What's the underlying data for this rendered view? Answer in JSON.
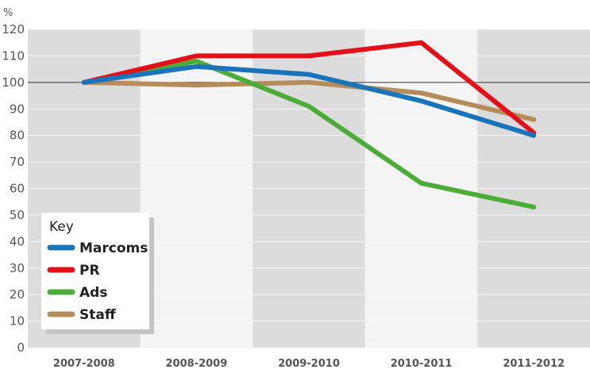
{
  "chart_data": {
    "type": "line",
    "title": "",
    "xlabel": "",
    "ylabel": "%",
    "ylim": [
      0,
      120
    ],
    "yticks": [
      0,
      10,
      20,
      30,
      40,
      50,
      60,
      70,
      80,
      90,
      100,
      110,
      120
    ],
    "categories": [
      "2007-2008",
      "2008-2009",
      "2009-2010",
      "2010-2011",
      "2011-2012"
    ],
    "grid": "horizontal",
    "reference_line": 100,
    "legend": {
      "title": "Key",
      "placement": "bottom-left"
    },
    "series": [
      {
        "name": "Marcoms",
        "color": "#1a74bb",
        "values": [
          100,
          106,
          103,
          93,
          80
        ]
      },
      {
        "name": "PR",
        "color": "#e3101a",
        "values": [
          100,
          110,
          110,
          115,
          81
        ]
      },
      {
        "name": "Ads",
        "color": "#4cac3a",
        "values": [
          100,
          108,
          91,
          62,
          53
        ]
      },
      {
        "name": "Staff",
        "color": "#b58c5a",
        "values": [
          100,
          99,
          100,
          96,
          86
        ]
      }
    ]
  },
  "colors": {
    "band_dark": "#dcdcdc",
    "band_light": "#f4f4f4",
    "grid": "#f6f6f6",
    "reference": "#333333"
  }
}
